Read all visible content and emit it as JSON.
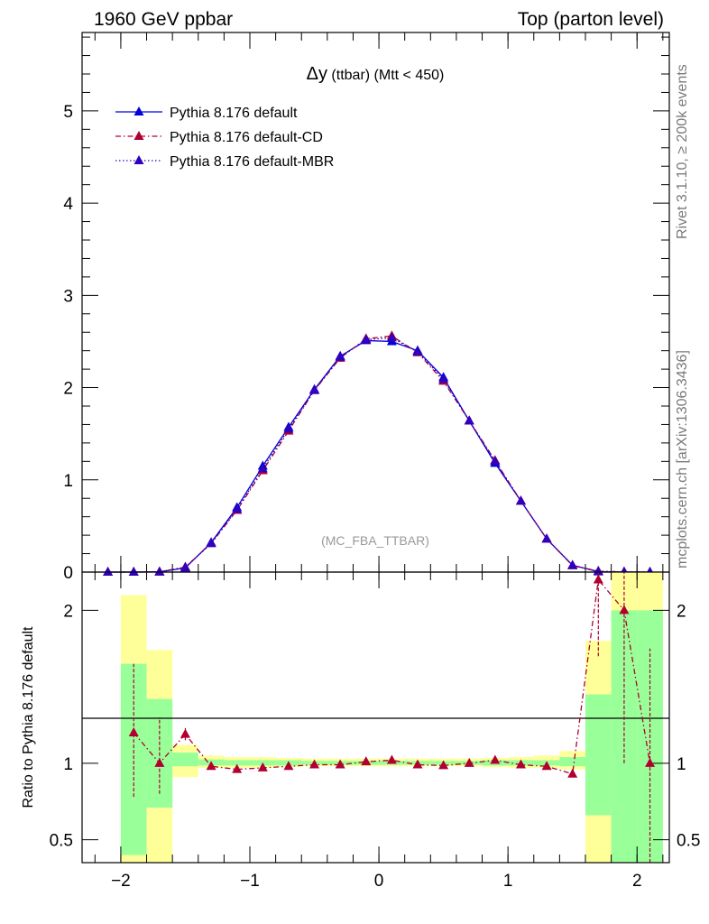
{
  "header": {
    "left": "1960 GeV ppbar",
    "right": "Top (parton level)"
  },
  "side_labels": {
    "rivet": "Rivet 3.1.10, ≥ 200k events",
    "mcplots": "mcplots.cern.ch [arXiv:1306.3436]"
  },
  "chart_data": [
    {
      "type": "line",
      "panel": "main",
      "title_main": "Δy",
      "title_rest": " (ttbar) (Mtt < 450)",
      "watermark": "(MC_FBA_TTBAR)",
      "xlim": [
        -2.3,
        2.25
      ],
      "ylim": [
        0,
        5.85
      ],
      "yticks": [
        0,
        1,
        2,
        3,
        4,
        5
      ],
      "yticklabels": [
        "0",
        "1",
        "2",
        "3",
        "4",
        "5"
      ],
      "x": [
        -2.1,
        -1.9,
        -1.7,
        -1.5,
        -1.3,
        -1.1,
        -0.9,
        -0.7,
        -0.5,
        -0.3,
        -0.1,
        0.1,
        0.3,
        0.5,
        0.7,
        0.9,
        1.1,
        1.3,
        1.5,
        1.7,
        1.9,
        2.1
      ],
      "legend": [
        "Pythia 8.176 default",
        "Pythia 8.176 default-CD",
        "Pythia 8.176 default-MBR"
      ],
      "series": [
        {
          "name": "Pythia 8.176 default",
          "color": "#0000dd",
          "style": "solid",
          "values": [
            0.0,
            0.0,
            0.003,
            0.045,
            0.32,
            0.7,
            1.15,
            1.57,
            1.98,
            2.34,
            2.51,
            2.5,
            2.4,
            2.11,
            1.64,
            1.18,
            0.77,
            0.36,
            0.075,
            0.004,
            0.001,
            0.0
          ]
        },
        {
          "name": "Pythia 8.176 default-CD",
          "color": "#b00030",
          "style": "dashdot",
          "values": [
            0.0,
            0.0,
            0.003,
            0.055,
            0.31,
            0.67,
            1.1,
            1.53,
            1.97,
            2.32,
            2.53,
            2.56,
            2.38,
            2.07,
            1.64,
            1.21,
            0.77,
            0.36,
            0.07,
            0.01,
            0.002,
            0.0
          ]
        },
        {
          "name": "Pythia 8.176 default-MBR",
          "color": "#3000c0",
          "style": "dotted",
          "values": [
            0.0,
            0.0,
            0.003,
            0.05,
            0.31,
            0.68,
            1.12,
            1.55,
            1.97,
            2.33,
            2.52,
            2.54,
            2.39,
            2.09,
            1.64,
            1.2,
            0.77,
            0.36,
            0.072,
            0.008,
            0.002,
            0.0
          ]
        }
      ]
    },
    {
      "type": "line",
      "panel": "ratio",
      "ylabel": "Ratio to Pythia 8.176 default",
      "xlim": [
        -2.3,
        2.25
      ],
      "ylim": [
        0.35,
        2.25
      ],
      "yticks": [
        0.5,
        1,
        2
      ],
      "yticklabels": [
        "0.5",
        "1",
        "2"
      ],
      "xticks": [
        -2,
        -1,
        0,
        1,
        2
      ],
      "xticklabels": [
        "−2",
        "−1",
        "0",
        "1",
        "2"
      ],
      "reference": 1,
      "bins": [
        [
          -2.0,
          -1.8
        ],
        [
          -1.8,
          -1.6
        ],
        [
          -1.6,
          -1.4
        ],
        [
          -1.4,
          -1.2
        ],
        [
          -1.2,
          -1.0
        ],
        [
          -1.0,
          -0.8
        ],
        [
          -0.8,
          -0.6
        ],
        [
          -0.6,
          -0.4
        ],
        [
          -0.4,
          -0.2
        ],
        [
          -0.2,
          0.0
        ],
        [
          0.0,
          0.2
        ],
        [
          0.2,
          0.4
        ],
        [
          0.4,
          0.6
        ],
        [
          0.6,
          0.8
        ],
        [
          0.8,
          1.0
        ],
        [
          1.0,
          1.2
        ],
        [
          1.2,
          1.4
        ],
        [
          1.4,
          1.6
        ],
        [
          1.6,
          1.8
        ],
        [
          1.8,
          2.0
        ],
        [
          2.0,
          2.2
        ]
      ],
      "band_green": [
        [
          0.4,
          1.65
        ],
        [
          0.71,
          1.42
        ],
        [
          0.98,
          1.07
        ],
        [
          0.985,
          1.025
        ],
        [
          0.985,
          1.02
        ],
        [
          0.985,
          1.02
        ],
        [
          0.985,
          1.02
        ],
        [
          0.99,
          1.015
        ],
        [
          0.99,
          1.015
        ],
        [
          0.99,
          1.015
        ],
        [
          0.99,
          1.015
        ],
        [
          0.99,
          1.015
        ],
        [
          0.99,
          1.015
        ],
        [
          0.99,
          1.015
        ],
        [
          0.985,
          1.02
        ],
        [
          0.985,
          1.02
        ],
        [
          0.985,
          1.02
        ],
        [
          0.98,
          1.04
        ],
        [
          0.66,
          1.45
        ],
        [
          0.35,
          2.0
        ],
        [
          0.35,
          2.0
        ]
      ],
      "band_yellow": [
        [
          0.35,
          2.1
        ],
        [
          0.35,
          1.74
        ],
        [
          0.91,
          1.12
        ],
        [
          0.97,
          1.05
        ],
        [
          0.97,
          1.04
        ],
        [
          0.97,
          1.04
        ],
        [
          0.975,
          1.035
        ],
        [
          0.98,
          1.03
        ],
        [
          0.98,
          1.03
        ],
        [
          0.98,
          1.03
        ],
        [
          0.98,
          1.03
        ],
        [
          0.98,
          1.03
        ],
        [
          0.98,
          1.03
        ],
        [
          0.98,
          1.03
        ],
        [
          0.975,
          1.035
        ],
        [
          0.97,
          1.04
        ],
        [
          0.97,
          1.05
        ],
        [
          0.96,
          1.08
        ],
        [
          0.35,
          1.8
        ],
        [
          0.35,
          2.25
        ],
        [
          0.35,
          2.25
        ]
      ],
      "series": [
        {
          "name": "Pythia 8.176 default-CD",
          "color": "#b00030",
          "x": [
            -1.9,
            -1.7,
            -1.5,
            -1.3,
            -1.1,
            -0.9,
            -0.7,
            -0.5,
            -0.3,
            -0.1,
            0.1,
            0.3,
            0.5,
            0.7,
            0.9,
            1.1,
            1.3,
            1.5,
            1.7,
            1.9,
            2.1
          ],
          "values": [
            1.2,
            1.0,
            1.19,
            0.98,
            0.96,
            0.97,
            0.98,
            0.99,
            0.99,
            1.01,
            1.02,
            0.99,
            0.985,
            1.0,
            1.02,
            0.99,
            0.98,
            0.93,
            2.2,
            2.0,
            1.0
          ],
          "err_lo": [
            0.78,
            0.8,
            1.15,
            0.97,
            0.955,
            0.965,
            0.975,
            0.985,
            0.985,
            1.005,
            1.015,
            0.985,
            0.98,
            0.995,
            1.01,
            0.985,
            0.975,
            0.91,
            1.7,
            1.0,
            0.35
          ],
          "err_hi": [
            1.65,
            1.3,
            1.23,
            0.99,
            0.965,
            0.975,
            0.985,
            0.995,
            0.995,
            1.015,
            1.025,
            0.995,
            0.99,
            1.005,
            1.03,
            0.995,
            0.985,
            0.95,
            2.25,
            2.25,
            1.75
          ]
        }
      ]
    }
  ]
}
